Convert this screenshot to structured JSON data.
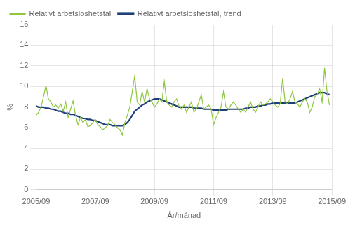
{
  "chart_data": {
    "type": "line",
    "xlabel": "År/månad",
    "ylabel": "%",
    "x": [
      0,
      1,
      2,
      3,
      4,
      5,
      6,
      7,
      8,
      9,
      10,
      11,
      12,
      13,
      14,
      15,
      16,
      17,
      18,
      19,
      20,
      21,
      22,
      23,
      24,
      25,
      26,
      27,
      28,
      29,
      30,
      31,
      32,
      33,
      34,
      35,
      36,
      37,
      38,
      39,
      40,
      41,
      42,
      43,
      44,
      45,
      46,
      47,
      48,
      49,
      50,
      51,
      52,
      53,
      54,
      55,
      56,
      57,
      58,
      59,
      60,
      61,
      62,
      63,
      64,
      65,
      66,
      67,
      68,
      69,
      70,
      71,
      72,
      73,
      74,
      75,
      76,
      77,
      78,
      79,
      80,
      81,
      82,
      83,
      84,
      85,
      86,
      87,
      88,
      89,
      90,
      91,
      92,
      93,
      94,
      95,
      96,
      97,
      98,
      99,
      100,
      101,
      102,
      103,
      104,
      105,
      106,
      107,
      108,
      109,
      110,
      111,
      112,
      113,
      114,
      115,
      116,
      117,
      118,
      119
    ],
    "series": [
      {
        "name": "Relativt arbetslöshetstal",
        "color": "#8dc63f",
        "values": [
          7.2,
          7.5,
          8.0,
          9.0,
          10.1,
          8.8,
          8.5,
          8.0,
          8.2,
          7.9,
          8.3,
          7.6,
          8.5,
          7.0,
          7.8,
          8.6,
          7.2,
          6.3,
          7.0,
          6.5,
          6.8,
          6.1,
          6.2,
          6.5,
          6.8,
          6.3,
          6.1,
          5.8,
          6.0,
          6.2,
          6.8,
          6.5,
          6.3,
          6.0,
          5.8,
          5.3,
          6.5,
          7.2,
          8.0,
          9.5,
          11.0,
          8.5,
          8.2,
          9.5,
          8.5,
          9.8,
          8.8,
          8.5,
          8.0,
          8.3,
          8.8,
          8.5,
          10.5,
          8.5,
          8.2,
          8.0,
          8.5,
          8.8,
          8.1,
          7.8,
          8.2,
          7.5,
          8.0,
          8.5,
          7.5,
          7.8,
          8.5,
          9.2,
          7.8,
          8.0,
          8.2,
          7.8,
          6.3,
          7.0,
          7.5,
          8.0,
          9.5,
          8.0,
          7.8,
          8.2,
          8.5,
          8.2,
          7.8,
          7.5,
          7.8,
          7.5,
          8.0,
          8.5,
          7.8,
          7.5,
          8.0,
          8.5,
          8.2,
          8.3,
          8.5,
          8.8,
          8.5,
          8.2,
          8.0,
          8.3,
          10.8,
          8.5,
          8.3,
          8.8,
          9.5,
          8.5,
          8.3,
          8.0,
          8.5,
          8.8,
          8.5,
          7.5,
          8.0,
          9.0,
          9.2,
          9.8,
          8.5,
          11.8,
          9.5,
          8.2
        ]
      },
      {
        "name": "Relativt arbetslöshetstal, trend",
        "color": "#1f3f7a",
        "values": [
          8.1,
          8.0,
          8.0,
          8.0,
          7.9,
          7.9,
          7.8,
          7.8,
          7.7,
          7.6,
          7.6,
          7.5,
          7.4,
          7.4,
          7.3,
          7.3,
          7.2,
          7.1,
          7.0,
          6.9,
          6.9,
          6.8,
          6.8,
          6.7,
          6.7,
          6.6,
          6.5,
          6.4,
          6.3,
          6.3,
          6.3,
          6.2,
          6.2,
          6.2,
          6.2,
          6.2,
          6.3,
          6.5,
          6.8,
          7.2,
          7.6,
          7.8,
          8.0,
          8.2,
          8.3,
          8.5,
          8.6,
          8.7,
          8.8,
          8.8,
          8.8,
          8.7,
          8.6,
          8.5,
          8.4,
          8.3,
          8.2,
          8.1,
          8.0,
          8.0,
          8.0,
          8.0,
          8.0,
          8.0,
          7.9,
          7.9,
          7.9,
          7.9,
          7.8,
          7.8,
          7.8,
          7.8,
          7.7,
          7.7,
          7.7,
          7.7,
          7.7,
          7.7,
          7.8,
          7.8,
          7.8,
          7.8,
          7.8,
          7.8,
          7.8,
          7.9,
          7.9,
          8.0,
          8.0,
          8.0,
          8.1,
          8.1,
          8.2,
          8.2,
          8.3,
          8.3,
          8.4,
          8.4,
          8.4,
          8.4,
          8.4,
          8.4,
          8.4,
          8.4,
          8.4,
          8.4,
          8.5,
          8.6,
          8.7,
          8.8,
          8.9,
          9.0,
          9.1,
          9.2,
          9.3,
          9.4,
          9.4,
          9.4,
          9.3,
          9.2
        ]
      }
    ],
    "xlim": [
      0,
      120
    ],
    "xticks": [
      {
        "value": 0,
        "label": "2005/09"
      },
      {
        "value": 24,
        "label": "2007/09"
      },
      {
        "value": 48,
        "label": "2009/09"
      },
      {
        "value": 72,
        "label": "2011/09"
      },
      {
        "value": 96,
        "label": "2013/09"
      },
      {
        "value": 120,
        "label": "2015/09"
      }
    ],
    "ylim": [
      0,
      16
    ],
    "yticks": [
      0,
      2,
      4,
      6,
      8,
      10,
      12,
      14,
      16
    ],
    "grid": true,
    "legend": "top"
  }
}
